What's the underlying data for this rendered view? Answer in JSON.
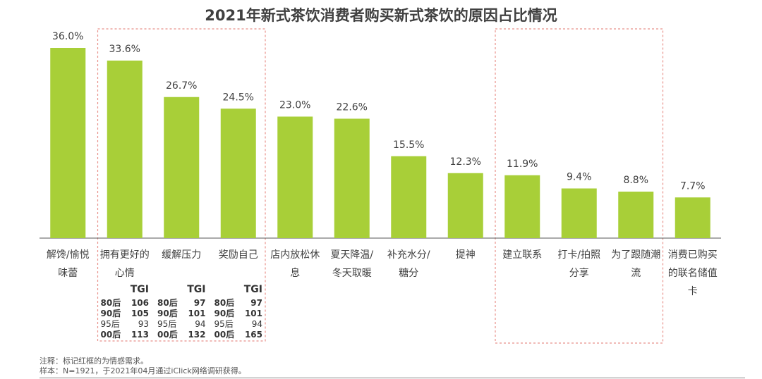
{
  "title": "2021年新式茶饮消费者购买新式茶饮的原因占比情况",
  "colors": {
    "bar": "#a8cf38",
    "highlight_box": "#e8918a",
    "baseline": "#555555",
    "text": "#404040"
  },
  "chart_data": {
    "type": "bar",
    "title": "2021年新式茶饮消费者购买新式茶饮的原因占比情况",
    "categories": [
      [
        "解馋/愉悦",
        "味蕾"
      ],
      [
        "拥有更好的",
        "心情"
      ],
      [
        "缓解压力"
      ],
      [
        "奖励自己"
      ],
      [
        "店内放松休",
        "息"
      ],
      [
        "夏天降温/",
        "冬天取暖"
      ],
      [
        "补充水分/",
        "糖分"
      ],
      [
        "提神"
      ],
      [
        "建立联系"
      ],
      [
        "打卡/拍照",
        "分享"
      ],
      [
        "为了跟随潮",
        "流"
      ],
      [
        "消费已购买",
        "的联名储值",
        "卡"
      ]
    ],
    "values": [
      36.0,
      33.6,
      26.7,
      24.5,
      23.0,
      22.6,
      15.5,
      12.3,
      11.9,
      9.4,
      8.8,
      7.7
    ],
    "value_labels": [
      "36.0%",
      "33.6%",
      "26.7%",
      "24.5%",
      "23.0%",
      "22.6%",
      "15.5%",
      "12.3%",
      "11.9%",
      "9.4%",
      "8.8%",
      "7.7%"
    ],
    "ylim": [
      0,
      40
    ],
    "xlabel": "",
    "ylabel": "",
    "highlight_groups": [
      [
        1,
        3
      ],
      [
        8,
        10
      ]
    ]
  },
  "tgi_tables": [
    {
      "category_index": 1,
      "header": "TGI",
      "rows": [
        {
          "group": "80后",
          "value": "106",
          "bold": true
        },
        {
          "group": "90后",
          "value": "105",
          "bold": true
        },
        {
          "group": "95后",
          "value": "93",
          "bold": false
        },
        {
          "group": "00后",
          "value": "113",
          "bold": true
        }
      ]
    },
    {
      "category_index": 2,
      "header": "TGI",
      "rows": [
        {
          "group": "80后",
          "value": "97",
          "bold": true
        },
        {
          "group": "90后",
          "value": "101",
          "bold": true
        },
        {
          "group": "95后",
          "value": "94",
          "bold": false
        },
        {
          "group": "00后",
          "value": "132",
          "bold": true
        }
      ]
    },
    {
      "category_index": 3,
      "header": "TGI",
      "rows": [
        {
          "group": "80后",
          "value": "97",
          "bold": true
        },
        {
          "group": "90后",
          "value": "101",
          "bold": true
        },
        {
          "group": "95后",
          "value": "94",
          "bold": false
        },
        {
          "group": "00后",
          "value": "165",
          "bold": true
        }
      ]
    }
  ],
  "notes": [
    "注释：标记红框的为情感需求。",
    "样本：N=1921，于2021年04月通过iClick网络调研获得。"
  ]
}
